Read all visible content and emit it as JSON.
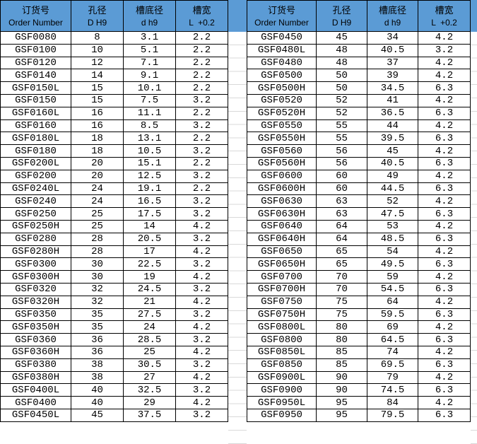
{
  "colors": {
    "header_bg": "#5B9BD5",
    "border": "#000000",
    "gridline": "#d9d9d9",
    "text": "#000000"
  },
  "header": {
    "columns": [
      {
        "zh": "订货号",
        "en": "Order Number"
      },
      {
        "zh": "孔径",
        "en": "D H9"
      },
      {
        "zh": "槽底径",
        "en": "d h9"
      },
      {
        "zh": "槽宽",
        "en": "L  +0.2"
      }
    ]
  },
  "left_table": {
    "rows": [
      [
        "GSF0080",
        "8",
        "3.1",
        "2.2"
      ],
      [
        "GSF0100",
        "10",
        "5.1",
        "2.2"
      ],
      [
        "GSF0120",
        "12",
        "7.1",
        "2.2"
      ],
      [
        "GSF0140",
        "14",
        "9.1",
        "2.2"
      ],
      [
        "GSF0150L",
        "15",
        "10.1",
        "2.2"
      ],
      [
        "GSF0150",
        "15",
        "7.5",
        "3.2"
      ],
      [
        "GSF0160L",
        "16",
        "11.1",
        "2.2"
      ],
      [
        "GSF0160",
        "16",
        "8.5",
        "3.2"
      ],
      [
        "GSF0180L",
        "18",
        "13.1",
        "2.2"
      ],
      [
        "GSF0180",
        "18",
        "10.5",
        "3.2"
      ],
      [
        "GSF0200L",
        "20",
        "15.1",
        "2.2"
      ],
      [
        "GSF0200",
        "20",
        "12.5",
        "3.2"
      ],
      [
        "GSF0240L",
        "24",
        "19.1",
        "2.2"
      ],
      [
        "GSF0240",
        "24",
        "16.5",
        "3.2"
      ],
      [
        "GSF0250",
        "25",
        "17.5",
        "3.2"
      ],
      [
        "GSF0250H",
        "25",
        "14",
        "4.2"
      ],
      [
        "GSF0280",
        "28",
        "20.5",
        "3.2"
      ],
      [
        "GSF0280H",
        "28",
        "17",
        "4.2"
      ],
      [
        "GSF0300",
        "30",
        "22.5",
        "3.2"
      ],
      [
        "GSF0300H",
        "30",
        "19",
        "4.2"
      ],
      [
        "GSF0320",
        "32",
        "24.5",
        "3.2"
      ],
      [
        "GSF0320H",
        "32",
        "21",
        "4.2"
      ],
      [
        "GSF0350",
        "35",
        "27.5",
        "3.2"
      ],
      [
        "GSF0350H",
        "35",
        "24",
        "4.2"
      ],
      [
        "GSF0360",
        "36",
        "28.5",
        "3.2"
      ],
      [
        "GSF0360H",
        "36",
        "25",
        "4.2"
      ],
      [
        "GSF0380",
        "38",
        "30.5",
        "3.2"
      ],
      [
        "GSF0380H",
        "38",
        "27",
        "4.2"
      ],
      [
        "GSF0400L",
        "40",
        "32.5",
        "3.2"
      ],
      [
        "GSF0400",
        "40",
        "29",
        "4.2"
      ],
      [
        "GSF0450L",
        "45",
        "37.5",
        "3.2"
      ]
    ]
  },
  "right_table": {
    "rows": [
      [
        "GSF0450",
        "45",
        "34",
        "4.2"
      ],
      [
        "GSF0480L",
        "48",
        "40.5",
        "3.2"
      ],
      [
        "GSF0480",
        "48",
        "37",
        "4.2"
      ],
      [
        "GSF0500",
        "50",
        "39",
        "4.2"
      ],
      [
        "GSF0500H",
        "50",
        "34.5",
        "6.3"
      ],
      [
        "GSF0520",
        "52",
        "41",
        "4.2"
      ],
      [
        "GSF0520H",
        "52",
        "36.5",
        "6.3"
      ],
      [
        "GSF0550",
        "55",
        "44",
        "4.2"
      ],
      [
        "GSF0550H",
        "55",
        "39.5",
        "6.3"
      ],
      [
        "GSF0560",
        "56",
        "45",
        "4.2"
      ],
      [
        "GSF0560H",
        "56",
        "40.5",
        "6.3"
      ],
      [
        "GSF0600",
        "60",
        "49",
        "4.2"
      ],
      [
        "GSF0600H",
        "60",
        "44.5",
        "6.3"
      ],
      [
        "GSF0630",
        "63",
        "52",
        "4.2"
      ],
      [
        "GSF0630H",
        "63",
        "47.5",
        "6.3"
      ],
      [
        "GSF0640",
        "64",
        "53",
        "4.2"
      ],
      [
        "GSF0640H",
        "64",
        "48.5",
        "6.3"
      ],
      [
        "GSF0650",
        "65",
        "54",
        "4.2"
      ],
      [
        "GSF0650H",
        "65",
        "49.5",
        "6.3"
      ],
      [
        "GSF0700",
        "70",
        "59",
        "4.2"
      ],
      [
        "GSF0700H",
        "70",
        "54.5",
        "6.3"
      ],
      [
        "GSF0750",
        "75",
        "64",
        "4.2"
      ],
      [
        "GSF0750H",
        "75",
        "59.5",
        "6.3"
      ],
      [
        "GSF0800L",
        "80",
        "69",
        "4.2"
      ],
      [
        "GSF0800",
        "80",
        "64.5",
        "6.3"
      ],
      [
        "GSF0850L",
        "85",
        "74",
        "4.2"
      ],
      [
        "GSF0850",
        "85",
        "69.5",
        "6.3"
      ],
      [
        "GSF0900L",
        "90",
        "79",
        "4.2"
      ],
      [
        "GSF0900",
        "90",
        "74.5",
        "6.3"
      ],
      [
        "GSF0950L",
        "95",
        "84",
        "4.2"
      ],
      [
        "GSF0950",
        "95",
        "79.5",
        "6.3"
      ]
    ]
  }
}
